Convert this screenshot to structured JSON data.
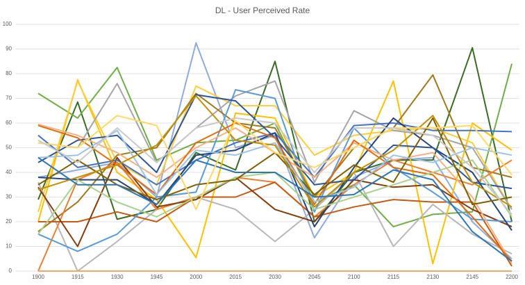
{
  "chart_data": {
    "type": "line",
    "title": "DL - User Perceived Rate",
    "categories": [
      "1900",
      "1915",
      "1930",
      "1945",
      "2000",
      "2015",
      "2030",
      "2045",
      "2100",
      "2115",
      "2130",
      "2145",
      "2200"
    ],
    "ylim": [
      0,
      100
    ],
    "yticks": [
      0,
      10,
      20,
      30,
      40,
      50,
      60,
      70,
      80,
      90,
      100
    ],
    "grid": true,
    "series": [
      {
        "color": "#8faadc",
        "values": [
          38,
          41,
          44,
          30,
          92.5,
          50,
          55,
          13.5,
          38,
          45,
          46,
          20,
          5
        ]
      },
      {
        "color": "#3a6b25",
        "values": [
          29,
          68.5,
          21,
          25,
          48,
          41,
          85,
          20,
          40,
          45,
          45,
          90.5,
          20
        ]
      },
      {
        "color": "#70ad47",
        "values": [
          72,
          62,
          82.5,
          45,
          52,
          53,
          60,
          28,
          35,
          18,
          23,
          24,
          84
        ]
      },
      {
        "color": "#ffc000",
        "values": [
          20,
          77.5,
          40,
          29,
          5.5,
          64,
          62,
          30,
          40,
          77,
          3,
          60,
          49
        ]
      },
      {
        "color": "#ffcd3c",
        "values": [
          24,
          77,
          44,
          35,
          75,
          67,
          67,
          47,
          55,
          57,
          58,
          52,
          25
        ]
      },
      {
        "color": "#a5a5a5",
        "values": [
          52,
          50,
          76,
          44,
          58,
          71,
          77,
          36,
          65,
          57,
          55,
          50,
          25
        ]
      },
      {
        "color": "#b7b7b7",
        "values": [
          36,
          0,
          12,
          25,
          30,
          25,
          12,
          25,
          40,
          10,
          27,
          15,
          7
        ]
      },
      {
        "color": "#9e7a1a",
        "values": [
          16,
          28,
          47,
          50,
          72,
          60,
          58,
          30,
          50,
          58,
          79.5,
          42,
          38
        ]
      },
      {
        "color": "#ed7d31",
        "values": [
          0,
          37,
          44,
          25,
          30,
          38,
          36,
          22,
          35,
          45,
          40,
          35,
          45
        ]
      },
      {
        "color": "#c55a11",
        "values": [
          20,
          20,
          24,
          20,
          30,
          30,
          36,
          22,
          26,
          29,
          28,
          28,
          2
        ]
      },
      {
        "color": "#843c0c",
        "values": [
          34,
          10,
          46,
          26,
          29,
          38,
          25,
          20,
          37,
          34,
          35,
          25,
          18
        ]
      },
      {
        "color": "#4472c4",
        "values": [
          55,
          42,
          45,
          35,
          45,
          52,
          56,
          38,
          59,
          60,
          57,
          57,
          56.5
        ]
      },
      {
        "color": "#5b9bd5",
        "values": [
          15,
          8,
          15,
          30,
          32,
          73.5,
          70,
          24,
          58,
          42,
          32,
          21,
          20
        ]
      },
      {
        "color": "#264478",
        "values": [
          38,
          37,
          37,
          27,
          47,
          49,
          56,
          18,
          42,
          62,
          50,
          40,
          16.5
        ]
      },
      {
        "color": "#2f5597",
        "values": [
          44,
          53,
          55,
          40,
          71.5,
          69,
          54,
          35,
          37,
          51,
          50,
          36,
          33.5
        ]
      },
      {
        "color": "#f4b183",
        "values": [
          59.5,
          55,
          48,
          38,
          50,
          58,
          48,
          38,
          52,
          45,
          48,
          30,
          3
        ]
      },
      {
        "color": "#e46c0a",
        "values": [
          59,
          54,
          43,
          31,
          52,
          60,
          54,
          27,
          53,
          42,
          39,
          22,
          4
        ]
      },
      {
        "color": "#a9d18e",
        "values": [
          15,
          37,
          28,
          22,
          30,
          38,
          40,
          25,
          30,
          35,
          40,
          45,
          22
        ]
      },
      {
        "color": "#7f6000",
        "values": [
          35,
          45,
          35,
          29,
          35,
          37,
          48,
          31,
          43,
          36,
          62,
          27,
          30
        ]
      },
      {
        "color": "#9dc3e6",
        "values": [
          46,
          47,
          57,
          31,
          49,
          47,
          52,
          28,
          34,
          47,
          44,
          50,
          47
        ]
      },
      {
        "color": "#bf9000",
        "values": [
          33,
          38,
          43,
          51,
          71,
          53,
          51,
          26,
          40,
          49,
          63,
          36,
          26
        ]
      },
      {
        "color": "#2e75b6",
        "values": [
          46,
          35,
          35,
          27,
          45,
          40,
          40,
          30,
          31,
          41,
          37,
          16,
          4
        ]
      },
      {
        "color": "#ffd966",
        "values": [
          52,
          50,
          63,
          59,
          25,
          61,
          48,
          42,
          50,
          58,
          58,
          59,
          39
        ]
      },
      {
        "color": "#c9c9c9",
        "values": [
          53,
          44,
          58,
          44,
          58,
          62,
          60,
          40,
          58,
          58,
          55,
          42,
          23
        ]
      },
      {
        "color": "#f8a56b",
        "values": [
          0,
          0,
          0,
          0,
          0,
          0,
          0,
          0,
          0,
          0,
          0,
          0,
          0
        ]
      }
    ]
  }
}
